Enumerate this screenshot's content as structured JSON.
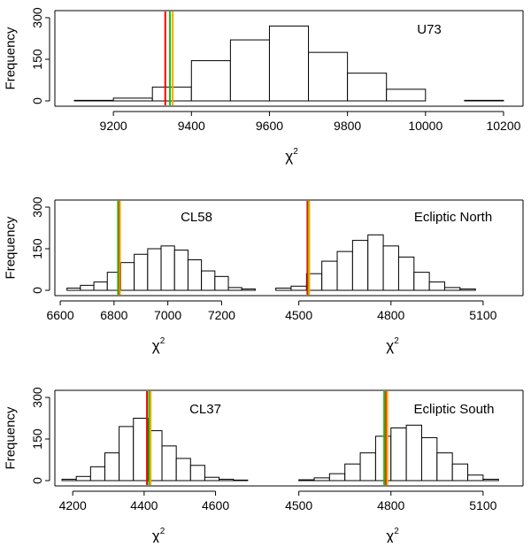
{
  "chart_data": [
    {
      "type": "bar",
      "title": "U73",
      "xlabel": "χ2",
      "ylabel": "Frequency",
      "xlim": [
        9050,
        10250
      ],
      "ylim": [
        0,
        300
      ],
      "yticks": [
        0,
        150,
        300
      ],
      "xticks": [
        9200,
        9400,
        9600,
        9800,
        10000,
        10200
      ],
      "bin_edges": [
        9100,
        9200,
        9300,
        9400,
        9500,
        9600,
        9700,
        9800,
        9900,
        10000,
        10100,
        10200
      ],
      "values": [
        2,
        10,
        50,
        145,
        220,
        270,
        175,
        100,
        42,
        0,
        2
      ],
      "vlines": [
        {
          "x": 9333,
          "color": "#ff0000"
        },
        {
          "x": 9345,
          "color": "#00cc00"
        },
        {
          "x": 9352,
          "color": "#ffa500"
        }
      ]
    },
    {
      "type": "bar",
      "title": "CL58",
      "xlabel": "χ2",
      "ylabel": "Frequency",
      "xlim": [
        6580,
        7350
      ],
      "ylim": [
        0,
        300
      ],
      "yticks": [
        0,
        150,
        300
      ],
      "xticks": [
        6600,
        6800,
        7000,
        7200
      ],
      "bin_edges": [
        6625,
        6675,
        6725,
        6775,
        6825,
        6875,
        6925,
        6975,
        7025,
        7075,
        7125,
        7175,
        7225,
        7275,
        7325
      ],
      "values": [
        8,
        18,
        30,
        65,
        100,
        130,
        150,
        160,
        145,
        110,
        70,
        50,
        10,
        5
      ],
      "vlines": [
        {
          "x": 6815,
          "color": "#00cc00"
        },
        {
          "x": 6820,
          "color": "#ff0000"
        },
        {
          "x": 6822,
          "color": "#ffa500"
        }
      ]
    },
    {
      "type": "bar",
      "title": "Ecliptic North",
      "xlabel": "χ2",
      "ylabel": "",
      "xlim": [
        4380,
        5230
      ],
      "ylim": [
        0,
        300
      ],
      "yticks": [],
      "xticks": [
        4500,
        4800,
        5100
      ],
      "bin_edges": [
        4425,
        4475,
        4525,
        4575,
        4625,
        4675,
        4725,
        4775,
        4825,
        4875,
        4925,
        4975,
        5025,
        5075
      ],
      "values": [
        8,
        15,
        60,
        105,
        140,
        180,
        200,
        160,
        120,
        65,
        30,
        10,
        5
      ],
      "vlines": [
        {
          "x": 4528,
          "color": "#ff0000"
        },
        {
          "x": 4532,
          "color": "#00cc00"
        },
        {
          "x": 4534,
          "color": "#ffa500"
        }
      ]
    },
    {
      "type": "bar",
      "title": "CL37",
      "xlabel": "χ2",
      "ylabel": "Frequency",
      "xlim": [
        4150,
        4730
      ],
      "ylim": [
        0,
        300
      ],
      "yticks": [
        0,
        150,
        300
      ],
      "xticks": [
        4200,
        4400,
        4600
      ],
      "bin_edges": [
        4170,
        4210,
        4250,
        4290,
        4330,
        4370,
        4410,
        4450,
        4490,
        4530,
        4570,
        4610,
        4650,
        4690
      ],
      "values": [
        5,
        15,
        50,
        100,
        195,
        225,
        180,
        125,
        80,
        55,
        12,
        5,
        2
      ],
      "vlines": [
        {
          "x": 4408,
          "color": "#ff0000"
        },
        {
          "x": 4414,
          "color": "#00cc00"
        },
        {
          "x": 4418,
          "color": "#ffa500"
        }
      ]
    },
    {
      "type": "bar",
      "title": "Ecliptic South",
      "xlabel": "χ2",
      "ylabel": "",
      "xlim": [
        4380,
        5230
      ],
      "ylim": [
        0,
        300
      ],
      "yticks": [],
      "xticks": [
        4500,
        4800,
        5100
      ],
      "bin_edges": [
        4500,
        4550,
        4600,
        4650,
        4700,
        4750,
        4800,
        4850,
        4900,
        4950,
        5000,
        5050,
        5100,
        5150
      ],
      "values": [
        3,
        10,
        25,
        60,
        100,
        160,
        190,
        200,
        155,
        100,
        60,
        20,
        5
      ],
      "vlines": [
        {
          "x": 4778,
          "color": "#00cc00"
        },
        {
          "x": 4784,
          "color": "#ff0000"
        },
        {
          "x": 4788,
          "color": "#ffa500"
        }
      ]
    }
  ]
}
